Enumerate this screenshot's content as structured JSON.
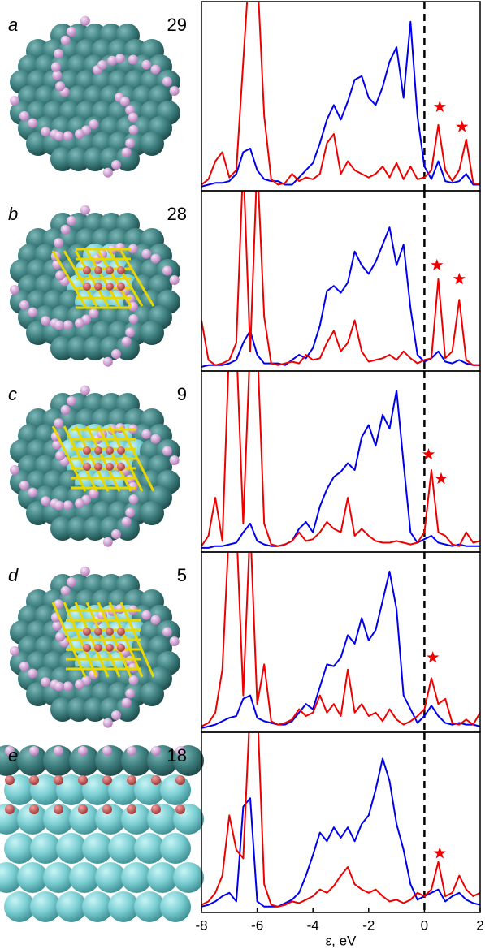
{
  "chart_data": [
    {
      "type": "line",
      "label": "a",
      "number": 29,
      "xlim": [
        -8,
        2
      ],
      "ylim": [
        0,
        1
      ],
      "vline": 0,
      "x": [
        -8,
        -7.75,
        -7.5,
        -7.25,
        -7,
        -6.75,
        -6.5,
        -6.25,
        -6,
        -5.75,
        -5.5,
        -5.25,
        -5,
        -4.75,
        -4.5,
        -4.25,
        -4,
        -3.75,
        -3.5,
        -3.25,
        -3,
        -2.75,
        -2.5,
        -2.25,
        -2,
        -1.75,
        -1.5,
        -1.25,
        -1,
        -0.75,
        -0.5,
        -0.25,
        0,
        0.25,
        0.5,
        0.75,
        1,
        1.25,
        1.5,
        1.75,
        2
      ],
      "series": [
        {
          "color": "#0000ee",
          "values": [
            0.01,
            0.02,
            0.03,
            0.03,
            0.04,
            0.08,
            0.2,
            0.22,
            0.1,
            0.05,
            0.04,
            0.04,
            0.02,
            0.02,
            0.06,
            0.1,
            0.14,
            0.25,
            0.38,
            0.46,
            0.38,
            0.48,
            0.6,
            0.62,
            0.5,
            0.46,
            0.56,
            0.7,
            0.78,
            0.5,
            0.92,
            0.4,
            0.12,
            0.05,
            0.15,
            0.04,
            0.03,
            0.04,
            0.08,
            0.02,
            0.02
          ]
        },
        {
          "color": "#ee0000",
          "values": [
            0.02,
            0.05,
            0.15,
            0.2,
            0.06,
            0.1,
            0.7,
            1.3,
            1.2,
            0.4,
            0.05,
            0.02,
            0.03,
            0.08,
            0.04,
            0.06,
            0.05,
            0.08,
            0.25,
            0.3,
            0.08,
            0.15,
            0.1,
            0.08,
            0.06,
            0.08,
            0.12,
            0.06,
            0.14,
            0.05,
            0.12,
            0.05,
            0.06,
            0.1,
            0.35,
            0.1,
            0.04,
            0.1,
            0.27,
            0.03,
            0.02
          ]
        }
      ],
      "star_x": [
        0.55,
        1.35
      ],
      "star_y": [
        0.45,
        0.34
      ]
    },
    {
      "type": "line",
      "label": "b",
      "number": 28,
      "xlim": [
        -8,
        2
      ],
      "ylim": [
        0,
        1
      ],
      "vline": 0,
      "x": [
        -8,
        -7.75,
        -7.5,
        -7.25,
        -7,
        -6.75,
        -6.5,
        -6.25,
        -6,
        -5.75,
        -5.5,
        -5.25,
        -5,
        -4.75,
        -4.5,
        -4.25,
        -4,
        -3.75,
        -3.5,
        -3.25,
        -3,
        -2.75,
        -2.5,
        -2.25,
        -2,
        -1.75,
        -1.5,
        -1.25,
        -1,
        -0.75,
        -0.5,
        -0.25,
        0,
        0.25,
        0.5,
        0.75,
        1,
        1.25,
        1.5,
        1.75,
        2
      ],
      "series": [
        {
          "color": "#0000ee",
          "values": [
            0.01,
            0.02,
            0.02,
            0.02,
            0.03,
            0.05,
            0.15,
            0.22,
            0.08,
            0.03,
            0.03,
            0.03,
            0.02,
            0.05,
            0.08,
            0.06,
            0.12,
            0.25,
            0.45,
            0.48,
            0.44,
            0.5,
            0.68,
            0.6,
            0.55,
            0.62,
            0.72,
            0.82,
            0.6,
            0.72,
            0.35,
            0.08,
            0.04,
            0.06,
            0.1,
            0.04,
            0.03,
            0.05,
            0.03,
            0.02,
            0.02
          ]
        },
        {
          "color": "#ee0000",
          "values": [
            0.28,
            0.05,
            0.02,
            0.03,
            0.05,
            0.15,
            1.2,
            0.1,
            1.2,
            0.3,
            0.03,
            0.02,
            0.03,
            0.04,
            0.03,
            0.08,
            0.05,
            0.06,
            0.15,
            0.22,
            0.1,
            0.15,
            0.28,
            0.1,
            0.04,
            0.05,
            0.06,
            0.08,
            0.05,
            0.1,
            0.06,
            0.03,
            0.05,
            0.06,
            0.52,
            0.06,
            0.1,
            0.4,
            0.05,
            0.02,
            0.02
          ]
        }
      ],
      "star_x": [
        0.45,
        1.25
      ],
      "star_y": [
        0.6,
        0.52
      ]
    },
    {
      "type": "line",
      "label": "c",
      "number": 9,
      "xlim": [
        -8,
        2
      ],
      "ylim": [
        0,
        1
      ],
      "vline": 0,
      "x": [
        -8,
        -7.75,
        -7.5,
        -7.25,
        -7,
        -6.75,
        -6.5,
        -6.25,
        -6,
        -5.75,
        -5.5,
        -5.25,
        -5,
        -4.75,
        -4.5,
        -4.25,
        -4,
        -3.75,
        -3.5,
        -3.25,
        -3,
        -2.75,
        -2.5,
        -2.25,
        -2,
        -1.75,
        -1.5,
        -1.25,
        -1,
        -0.75,
        -0.5,
        -0.25,
        0,
        0.25,
        0.5,
        0.75,
        1,
        1.25,
        1.5,
        1.75,
        2
      ],
      "series": [
        {
          "color": "#0000ee",
          "values": [
            0.01,
            0.01,
            0.02,
            0.02,
            0.03,
            0.04,
            0.1,
            0.15,
            0.05,
            0.03,
            0.02,
            0.02,
            0.03,
            0.05,
            0.12,
            0.16,
            0.1,
            0.25,
            0.35,
            0.42,
            0.45,
            0.5,
            0.46,
            0.65,
            0.72,
            0.6,
            0.78,
            0.7,
            0.92,
            0.5,
            0.1,
            0.04,
            0.06,
            0.08,
            0.04,
            0.03,
            0.02,
            0.03,
            0.02,
            0.02,
            0.02
          ]
        },
        {
          "color": "#ee0000",
          "values": [
            0.02,
            0.08,
            0.3,
            0.05,
            1.2,
            1.2,
            0.15,
            1.2,
            1.2,
            0.15,
            0.03,
            0.02,
            0.03,
            0.05,
            0.1,
            0.05,
            0.06,
            0.1,
            0.16,
            0.12,
            0.1,
            0.3,
            0.08,
            0.12,
            0.08,
            0.05,
            0.04,
            0.04,
            0.05,
            0.04,
            0.03,
            0.04,
            0.1,
            0.46,
            0.1,
            0.08,
            0.03,
            0.02,
            0.1,
            0.04,
            0.05
          ]
        }
      ],
      "star_x": [
        0.15,
        0.6
      ],
      "star_y": [
        0.55,
        0.41
      ]
    },
    {
      "type": "line",
      "label": "d",
      "number": 5,
      "xlim": [
        -8,
        2
      ],
      "ylim": [
        0,
        1
      ],
      "vline": 0,
      "x": [
        -8,
        -7.75,
        -7.5,
        -7.25,
        -7,
        -6.75,
        -6.5,
        -6.25,
        -6,
        -5.75,
        -5.5,
        -5.25,
        -5,
        -4.75,
        -4.5,
        -4.25,
        -4,
        -3.75,
        -3.5,
        -3.25,
        -3,
        -2.75,
        -2.5,
        -2.25,
        -2,
        -1.75,
        -1.5,
        -1.25,
        -1,
        -0.75,
        -0.5,
        -0.25,
        0,
        0.25,
        0.5,
        0.75,
        1,
        1.25,
        1.5,
        1.75,
        2
      ],
      "series": [
        {
          "color": "#0000ee",
          "values": [
            0.01,
            0.02,
            0.03,
            0.05,
            0.07,
            0.08,
            0.18,
            0.2,
            0.07,
            0.05,
            0.04,
            0.03,
            0.03,
            0.05,
            0.1,
            0.15,
            0.12,
            0.25,
            0.38,
            0.37,
            0.42,
            0.55,
            0.5,
            0.65,
            0.52,
            0.58,
            0.75,
            0.92,
            0.7,
            0.2,
            0.12,
            0.04,
            0.08,
            0.14,
            0.08,
            0.04,
            0.03,
            0.04,
            0.03,
            0.03,
            0.02
          ]
        },
        {
          "color": "#ee0000",
          "values": [
            0.02,
            0.04,
            0.1,
            0.35,
            1.2,
            1.2,
            0.2,
            1.2,
            0.15,
            0.38,
            0.05,
            0.03,
            0.04,
            0.06,
            0.12,
            0.08,
            0.1,
            0.2,
            0.1,
            0.15,
            0.08,
            0.35,
            0.1,
            0.15,
            0.08,
            0.1,
            0.05,
            0.12,
            0.06,
            0.03,
            0.05,
            0.08,
            0.12,
            0.3,
            0.15,
            0.18,
            0.04,
            0.03,
            0.06,
            0.03,
            0.1
          ]
        }
      ],
      "star_x": [
        0.3
      ],
      "star_y": [
        0.42
      ]
    },
    {
      "type": "line",
      "label": "e",
      "number": 18,
      "xlim": [
        -8,
        2
      ],
      "ylim": [
        0,
        1
      ],
      "vline": 0,
      "x": [
        -8,
        -7.75,
        -7.5,
        -7.25,
        -7,
        -6.75,
        -6.5,
        -6.25,
        -6,
        -5.75,
        -5.5,
        -5.25,
        -5,
        -4.75,
        -4.5,
        -4.25,
        -4,
        -3.75,
        -3.5,
        -3.25,
        -3,
        -2.75,
        -2.5,
        -2.25,
        -2,
        -1.75,
        -1.5,
        -1.25,
        -1,
        -0.75,
        -0.5,
        -0.25,
        0,
        0.25,
        0.5,
        0.75,
        1,
        1.25,
        1.5,
        1.75,
        2
      ],
      "series": [
        {
          "color": "#0000ee",
          "values": [
            0.02,
            0.03,
            0.05,
            0.08,
            0.1,
            0.05,
            0.6,
            0.65,
            0.05,
            0.02,
            0.02,
            0.02,
            0.04,
            0.06,
            0.1,
            0.2,
            0.32,
            0.45,
            0.4,
            0.48,
            0.42,
            0.48,
            0.4,
            0.5,
            0.55,
            0.7,
            0.88,
            0.75,
            0.5,
            0.35,
            0.15,
            0.06,
            0.08,
            0.1,
            0.12,
            0.05,
            0.08,
            0.1,
            0.06,
            0.04,
            0.03
          ]
        },
        {
          "color": "#ee0000",
          "values": [
            0.03,
            0.05,
            0.1,
            0.2,
            0.55,
            0.35,
            0.3,
            1.2,
            1.2,
            0.15,
            0.03,
            0.02,
            0.03,
            0.05,
            0.04,
            0.06,
            0.08,
            0.12,
            0.1,
            0.14,
            0.2,
            0.25,
            0.15,
            0.12,
            0.1,
            0.12,
            0.08,
            0.05,
            0.06,
            0.04,
            0.06,
            0.1,
            0.08,
            0.12,
            0.28,
            0.08,
            0.1,
            0.2,
            0.12,
            0.08,
            0.1
          ]
        }
      ],
      "star_x": [
        0.55
      ],
      "star_y": [
        0.33
      ],
      "xticks": [
        -8,
        -6,
        -4,
        -2,
        0,
        2
      ],
      "xlabel": "ε, eV"
    }
  ]
}
